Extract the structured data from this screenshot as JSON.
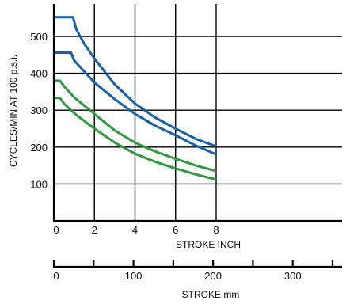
{
  "chart_data": {
    "type": "line",
    "title": "",
    "xlabel": "STROKE INCH",
    "ylabel": "CYCLES/MIN AT 100 p.s.i.",
    "xlim": [
      0,
      8
    ],
    "ylim": [
      0,
      580
    ],
    "x_ticks": [
      "0",
      "2",
      "4",
      "6",
      "8"
    ],
    "x_tick_values": [
      0,
      2,
      4,
      6,
      8
    ],
    "x_grid": [
      0,
      2,
      4,
      6,
      8
    ],
    "y_ticks": [
      "100",
      "200",
      "300",
      "400",
      "500"
    ],
    "y_tick_values": [
      100,
      200,
      300,
      400,
      500
    ],
    "y_grid": [
      100,
      200,
      300,
      400,
      500
    ],
    "grid": true,
    "series": [
      {
        "color": "#1560a8",
        "x": [
          0,
          0.95,
          1.1,
          1.5,
          2,
          3,
          4,
          5,
          6,
          7,
          8
        ],
        "y": [
          552,
          552,
          520,
          480,
          440,
          370,
          318,
          280,
          250,
          222,
          202
        ]
      },
      {
        "color": "#1560a8",
        "x": [
          0,
          0.85,
          1.0,
          1.5,
          2,
          3,
          4,
          5,
          6,
          7,
          8
        ],
        "y": [
          456,
          456,
          435,
          405,
          375,
          330,
          290,
          258,
          232,
          204,
          180
        ]
      },
      {
        "color": "#2e9a3e",
        "x": [
          0,
          0.3,
          0.5,
          1,
          2,
          3,
          4,
          5,
          6,
          7,
          8
        ],
        "y": [
          380,
          380,
          365,
          335,
          290,
          245,
          212,
          188,
          168,
          150,
          135
        ]
      },
      {
        "color": "#2e9a3e",
        "x": [
          0,
          0.3,
          0.5,
          1,
          2,
          3,
          4,
          5,
          6,
          7,
          8
        ],
        "y": [
          333,
          333,
          318,
          292,
          250,
          212,
          182,
          160,
          142,
          126,
          112
        ]
      }
    ],
    "secondary_x_axis": {
      "label": "STROKE mm",
      "xlim": [
        0,
        350
      ],
      "tick_labels": [
        "0",
        "100",
        "200",
        "300"
      ],
      "tick_values": [
        0,
        100,
        200,
        300
      ],
      "minor_tick_values": [
        50,
        150,
        250,
        350
      ]
    }
  }
}
